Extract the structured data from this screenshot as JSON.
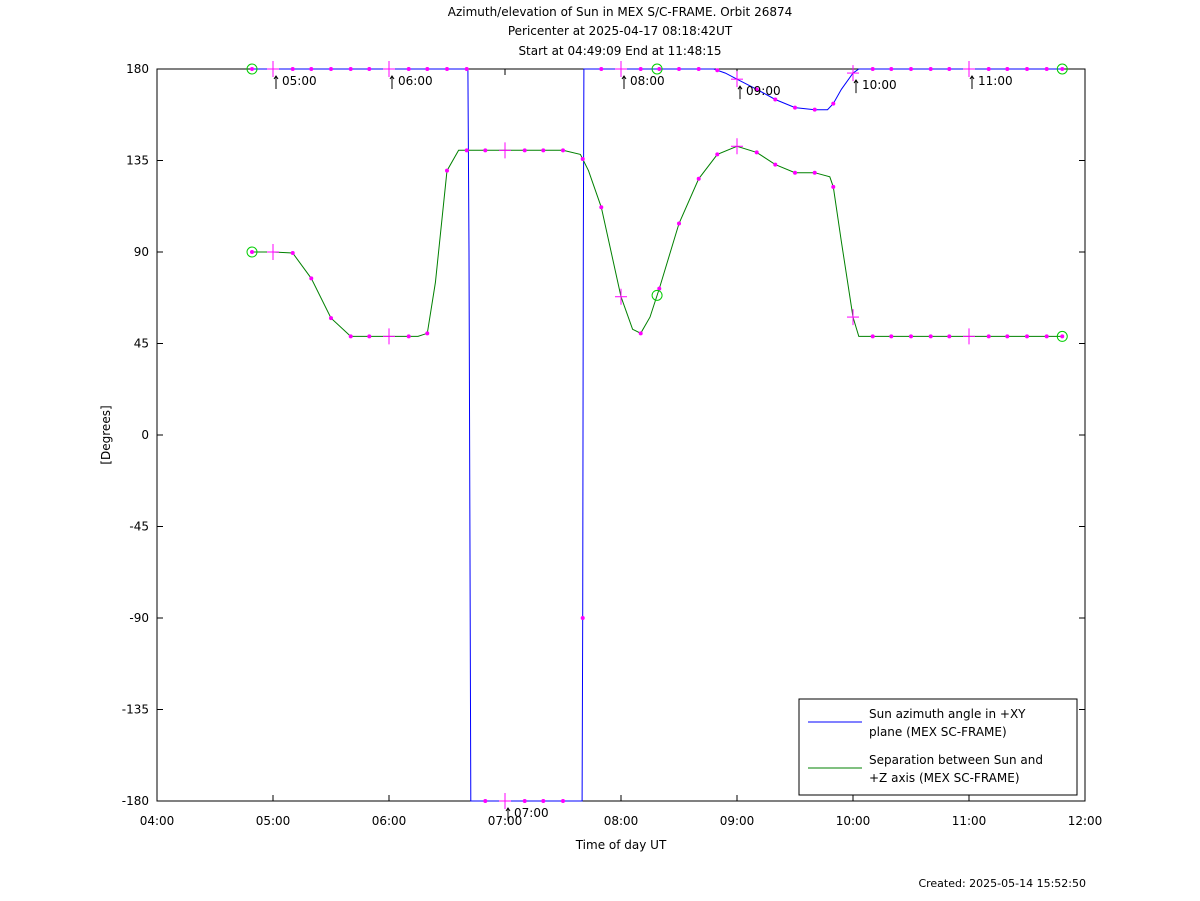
{
  "title": {
    "line1": "Azimuth/elevation of Sun in MEX S/C-FRAME.  Orbit 26874",
    "line2": "Pericenter at 2025-04-17 08:18:42UT",
    "line3": "Start at 04:49:09 End at 11:48:15"
  },
  "footer": "Created: 2025-05-14 15:52:50",
  "chart_data": {
    "type": "line",
    "xlabel": "Time of day UT",
    "ylabel": "[Degrees]",
    "xlim": [
      4.0,
      12.0
    ],
    "ylim": [
      -180,
      180
    ],
    "x_unit": "hours (time of day UT)",
    "xticks": [
      4,
      5,
      6,
      7,
      8,
      9,
      10,
      11,
      12
    ],
    "xtick_labels": [
      "04:00",
      "05:00",
      "06:00",
      "07:00",
      "08:00",
      "09:00",
      "10:00",
      "11:00",
      "12:00"
    ],
    "yticks": [
      180,
      135,
      90,
      45,
      0,
      -45,
      -90,
      -135,
      -180
    ],
    "ytick_labels": [
      "180",
      "135",
      "90",
      "45",
      "0",
      "-45",
      "-90",
      "-135",
      "-180"
    ],
    "grid": false,
    "legend_position": "bottom-right",
    "hour_markers": [
      {
        "x": 5.0,
        "y": 180,
        "label": "05:00"
      },
      {
        "x": 6.0,
        "y": 180,
        "label": "06:00"
      },
      {
        "x": 7.0,
        "y": -180,
        "label": "07:00"
      },
      {
        "x": 8.0,
        "y": 180,
        "label": "08:00"
      },
      {
        "x": 9.0,
        "y": 175,
        "label": "09:00"
      },
      {
        "x": 10.0,
        "y": 178,
        "label": "10:00"
      },
      {
        "x": 11.0,
        "y": 180,
        "label": "11:00"
      }
    ],
    "series": [
      {
        "name": "Sun azimuth angle in +XY plane (MEX SC-FRAME)",
        "legend_lines": [
          "Sun azimuth angle in +XY",
          "plane (MEX SC-FRAME)"
        ],
        "color": "#0000ff",
        "x": [
          4.819,
          6.68,
          6.69,
          6.7,
          6.705,
          7.665,
          7.67,
          7.675,
          7.68,
          8.0,
          8.33,
          8.8,
          8.9,
          9.0,
          9.17,
          9.33,
          9.5,
          9.67,
          9.78,
          9.83,
          9.9,
          10.0,
          10.05,
          10.5,
          11.0,
          11.804
        ],
        "y": [
          180,
          180,
          90,
          -90,
          -180,
          -180,
          -90,
          90,
          180,
          180,
          180,
          180,
          178,
          175,
          170,
          165,
          161,
          160,
          160,
          163,
          170,
          178,
          180,
          180,
          180,
          180
        ]
      },
      {
        "name": "Separation between Sun and +Z axis (MEX SC-FRAME)",
        "legend_lines": [
          "Separation between Sun and",
          "+Z axis (MEX SC-FRAME)"
        ],
        "color": "#008000",
        "x": [
          4.819,
          5.0,
          5.17,
          5.33,
          5.5,
          5.67,
          6.0,
          6.25,
          6.33,
          6.4,
          6.5,
          6.6,
          6.7,
          7.0,
          7.5,
          7.65,
          7.72,
          7.83,
          8.0,
          8.1,
          8.17,
          8.25,
          8.33,
          8.5,
          8.67,
          8.83,
          9.0,
          9.17,
          9.33,
          9.5,
          9.67,
          9.8,
          9.83,
          9.9,
          10.0,
          10.05,
          10.5,
          11.0,
          11.804
        ],
        "y": [
          90,
          90,
          89.5,
          77,
          57.5,
          48.5,
          48.5,
          48.5,
          50,
          75,
          130,
          140,
          140,
          140,
          140,
          138,
          130,
          112,
          68,
          52,
          50,
          58,
          72,
          104,
          126,
          138,
          142,
          139,
          133,
          129,
          129,
          127,
          122,
          95,
          58,
          48.5,
          48.5,
          48.5,
          48.5
        ]
      }
    ],
    "markers": {
      "color": "#ff00ff",
      "azimuth_dots_x": [
        4.819,
        5.0,
        5.17,
        5.33,
        5.5,
        5.67,
        5.83,
        6.0,
        6.17,
        6.33,
        6.5,
        6.67,
        6.83,
        7.0,
        7.17,
        7.33,
        7.5,
        7.67,
        7.83,
        8.0,
        8.17,
        8.33,
        8.5,
        8.67,
        8.83,
        9.0,
        9.17,
        9.33,
        9.5,
        9.67,
        9.83,
        10.0,
        10.17,
        10.33,
        10.5,
        10.67,
        10.83,
        11.0,
        11.17,
        11.33,
        11.5,
        11.67,
        11.804
      ],
      "separation_dots_x": [
        4.819,
        5.0,
        5.17,
        5.33,
        5.5,
        5.67,
        5.83,
        6.0,
        6.17,
        6.33,
        6.5,
        6.67,
        6.83,
        7.0,
        7.17,
        7.33,
        7.5,
        7.67,
        7.83,
        8.0,
        8.17,
        8.33,
        8.5,
        8.67,
        8.83,
        9.0,
        9.17,
        9.33,
        9.5,
        9.67,
        9.83,
        10.0,
        10.17,
        10.33,
        10.5,
        10.67,
        10.83,
        11.0,
        11.17,
        11.33,
        11.5,
        11.67,
        11.804
      ],
      "circle_x": [
        4.819,
        8.311,
        11.804
      ]
    }
  }
}
